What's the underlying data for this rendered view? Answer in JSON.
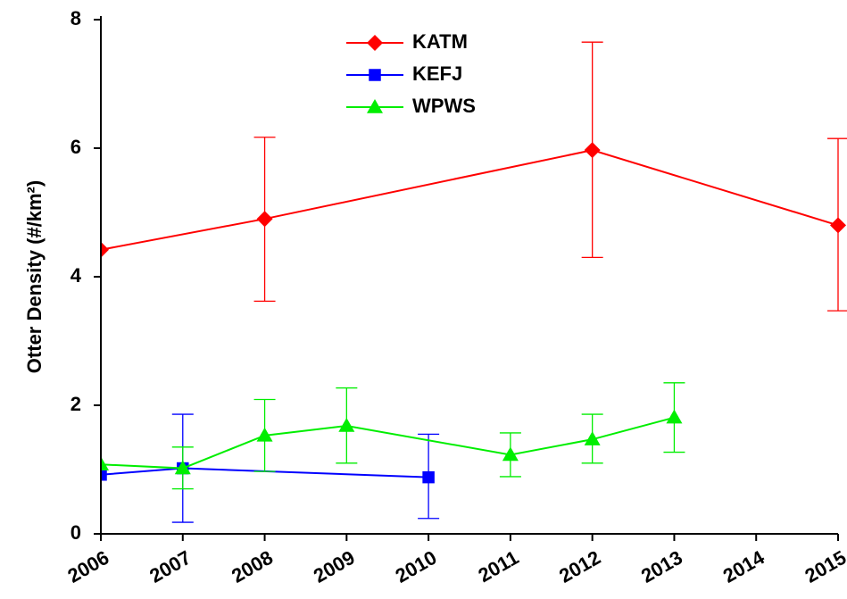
{
  "chart_data": {
    "type": "line",
    "ylabel": "Otter Density (#/km²)",
    "xlim": [
      2006,
      2015
    ],
    "xticks": [
      2006,
      2007,
      2008,
      2009,
      2010,
      2011,
      2012,
      2013,
      2014,
      2015
    ],
    "ylim": [
      0,
      8
    ],
    "yticks": [
      0,
      2,
      4,
      6,
      8
    ],
    "legend": "top-center",
    "series": [
      {
        "name": "KATM",
        "color": "#ff0000",
        "marker": "diamond",
        "x": [
          2006,
          2008,
          2012,
          2015
        ],
        "values": [
          4.42,
          4.9,
          5.97,
          4.8
        ],
        "lower": [
          null,
          3.62,
          4.3,
          3.47
        ],
        "upper": [
          null,
          6.17,
          7.65,
          6.15
        ]
      },
      {
        "name": "KEFJ",
        "color": "#0000ff",
        "marker": "square",
        "x": [
          2006,
          2007,
          2010
        ],
        "values": [
          0.92,
          1.02,
          0.88
        ],
        "lower": [
          null,
          0.18,
          0.24
        ],
        "upper": [
          null,
          1.86,
          1.55
        ]
      },
      {
        "name": "WPWS",
        "color": "#00ee00",
        "marker": "triangle",
        "x": [
          2006,
          2007,
          2008,
          2009,
          2011,
          2012,
          2013
        ],
        "values": [
          1.08,
          1.02,
          1.53,
          1.68,
          1.23,
          1.47,
          1.81
        ],
        "lower": [
          null,
          0.7,
          0.97,
          1.1,
          0.89,
          1.1,
          1.27
        ],
        "upper": [
          null,
          1.35,
          2.09,
          2.27,
          1.57,
          1.86,
          2.35
        ]
      }
    ]
  }
}
